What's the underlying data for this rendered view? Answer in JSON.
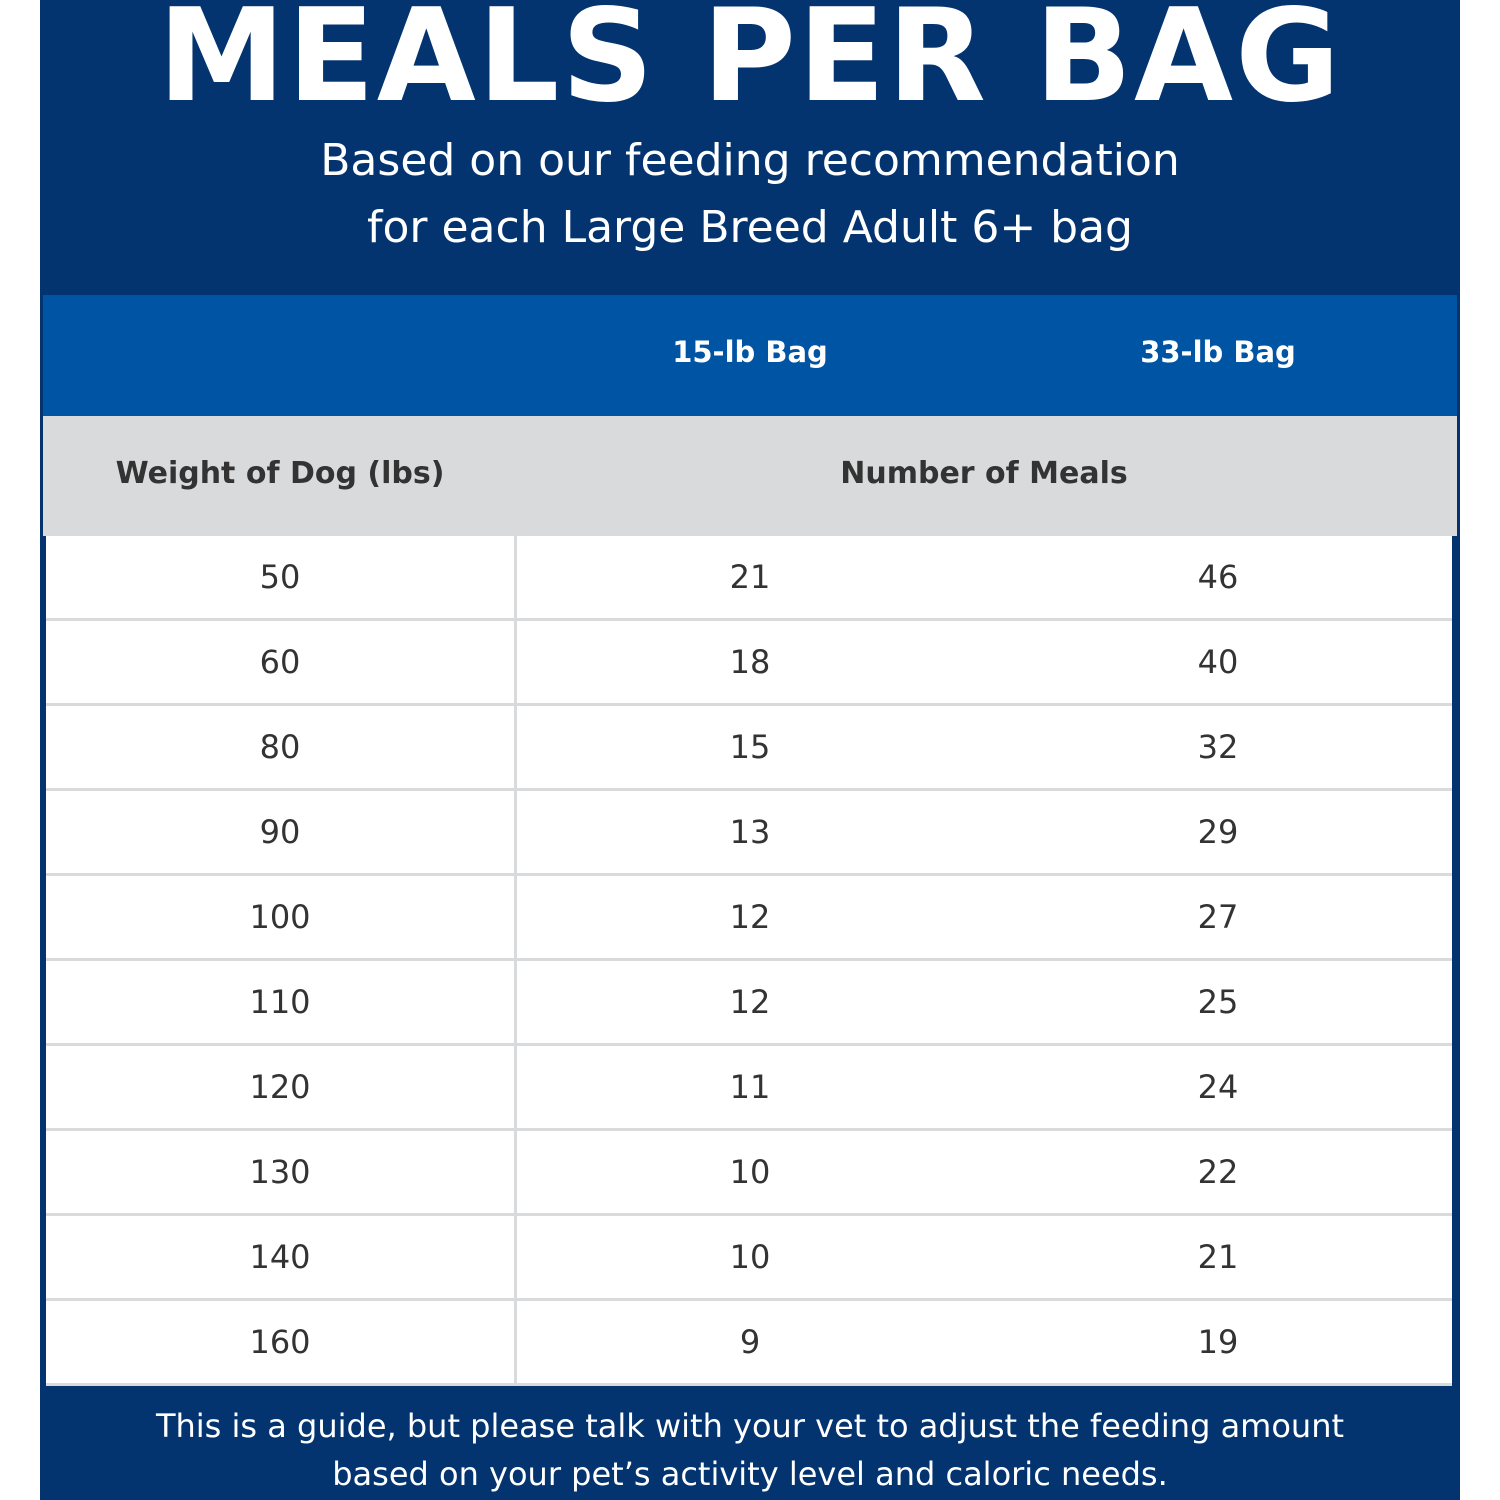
{
  "title": "MEALS PER BAG",
  "subtitle": [
    "Based on our feeding recommendation",
    "for each Large Breed Adult 6+ bag"
  ],
  "table": {
    "bag_headers": [
      "15-lb Bag",
      "33-lb Bag"
    ],
    "col_header_weight": "Weight of Dog (lbs)",
    "col_header_meals": "Number of Meals",
    "rows": [
      [
        "50",
        "21",
        "46"
      ],
      [
        "60",
        "18",
        "40"
      ],
      [
        "80",
        "15",
        "32"
      ],
      [
        "90",
        "13",
        "29"
      ],
      [
        "100",
        "12",
        "27"
      ],
      [
        "110",
        "12",
        "25"
      ],
      [
        "120",
        "11",
        "24"
      ],
      [
        "130",
        "10",
        "22"
      ],
      [
        "140",
        "10",
        "21"
      ],
      [
        "160",
        "9",
        "19"
      ]
    ]
  },
  "footer": [
    "This is a guide, but please talk with your vet to adjust the feeding amount",
    "based on your pet’s activity level and caloric needs."
  ],
  "colors": {
    "navy": "#033470",
    "blue": "#0054a4",
    "gray": "#d9dadb"
  }
}
